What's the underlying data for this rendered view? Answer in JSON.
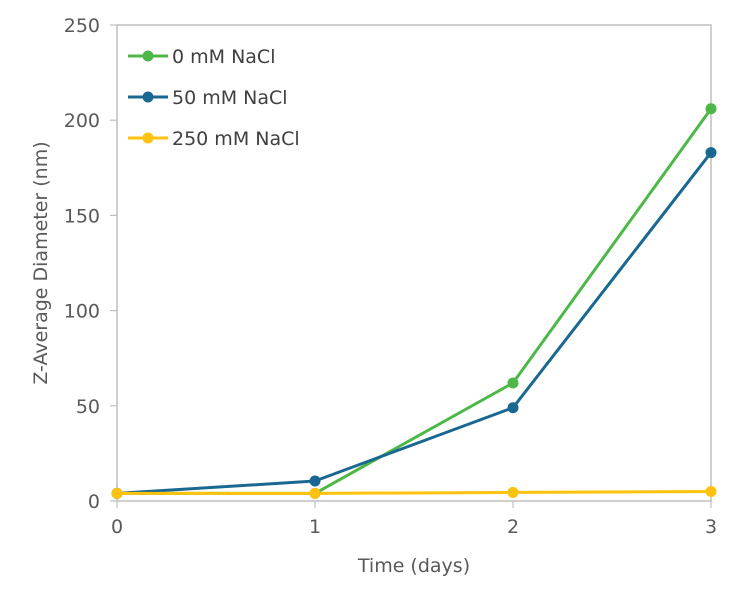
{
  "chart_data": {
    "type": "line",
    "title": "",
    "xlabel": "Time (days)",
    "ylabel": "Z-Average Diameter (nm)",
    "x": [
      0,
      1,
      2,
      3
    ],
    "xticks": [
      "0",
      "1",
      "2",
      "3"
    ],
    "yticks": [
      "0",
      "50",
      "100",
      "150",
      "200",
      "250"
    ],
    "xlim": [
      0,
      3
    ],
    "ylim": [
      0,
      250
    ],
    "grid": false,
    "legend_position": "upper-left-inside",
    "series": [
      {
        "name": "0 mM NaCl",
        "color": "#4DB848",
        "values": [
          4,
          4,
          62,
          206
        ]
      },
      {
        "name": "50 mM NaCl",
        "color": "#1A6891",
        "values": [
          4,
          10.5,
          49,
          183
        ]
      },
      {
        "name": "250 mM NaCl",
        "color": "#FFC20E",
        "values": [
          4,
          4,
          4.5,
          5
        ]
      }
    ]
  },
  "colors": {
    "axis": "#BFBFBF",
    "text": "#595959"
  }
}
